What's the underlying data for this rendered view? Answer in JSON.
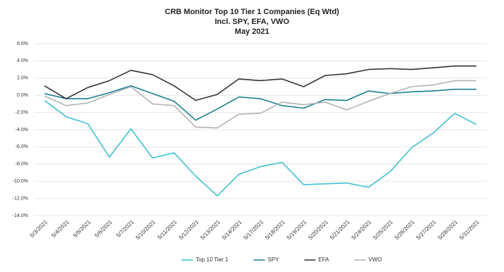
{
  "chart_data": {
    "type": "line",
    "title": "CRB Monitor Top 10 Tier 1 Companies (Eq Wtd)",
    "subtitle": "Incl. SPY, EFA, VWO",
    "period": "May 2021",
    "categories": [
      "5/3/2021",
      "5/4/2021",
      "5/5/2021",
      "5/6/2021",
      "5/7/2021",
      "5/10/2021",
      "5/11/2021",
      "5/12/2021",
      "5/13/2021",
      "5/14/2021",
      "5/17/2021",
      "5/18/2021",
      "5/19/2021",
      "5/20/2021",
      "5/21/2021",
      "5/24/2021",
      "5/25/2021",
      "5/26/2021",
      "5/27/2021",
      "5/28/2021",
      "5/31/2021"
    ],
    "series": [
      {
        "name": "Top 10 Tier 1",
        "color": "#3ec1d3",
        "values": [
          -0.6,
          -2.5,
          -3.3,
          -7.2,
          -3.9,
          -7.3,
          -6.7,
          -9.4,
          -11.7,
          -9.2,
          -8.3,
          -7.8,
          -10.4,
          -10.3,
          -10.2,
          -10.7,
          -8.9,
          -6.1,
          -4.4,
          -2.1,
          -3.4
        ]
      },
      {
        "name": "SPY",
        "color": "#1a7f8e",
        "values": [
          0.2,
          -0.4,
          -0.4,
          0.3,
          1.1,
          0.2,
          -0.7,
          -2.9,
          -1.6,
          -0.2,
          -0.4,
          -1.2,
          -1.5,
          -0.5,
          -0.6,
          0.5,
          0.2,
          0.4,
          0.5,
          0.7,
          0.7
        ]
      },
      {
        "name": "EFA",
        "color": "#333333",
        "values": [
          1.1,
          -0.4,
          0.9,
          1.7,
          2.9,
          2.4,
          1.1,
          -0.6,
          0.1,
          1.9,
          1.7,
          1.9,
          1.0,
          2.3,
          2.5,
          3.0,
          3.1,
          3.0,
          3.2,
          3.4,
          3.4
        ]
      },
      {
        "name": "VWO",
        "color": "#b3b3b3",
        "values": [
          -0.1,
          -1.2,
          -0.9,
          0.1,
          1.0,
          -1.0,
          -1.2,
          -3.7,
          -3.8,
          -2.2,
          -2.1,
          -0.8,
          -1.1,
          -0.8,
          -1.7,
          -0.7,
          0.2,
          1.0,
          1.2,
          1.7,
          1.7
        ]
      }
    ],
    "ylim": [
      -14,
      6
    ],
    "yticks": [
      {
        "value": 6,
        "label": "6.0%"
      },
      {
        "value": 4,
        "label": "4.0%"
      },
      {
        "value": 2,
        "label": "2.0%"
      },
      {
        "value": 0,
        "label": "0.0%"
      },
      {
        "value": -2,
        "label": "-2.0%"
      },
      {
        "value": -4,
        "label": "-4.0%"
      },
      {
        "value": -6,
        "label": "-6.0%"
      },
      {
        "value": -8,
        "label": "-8.0%"
      },
      {
        "value": -10,
        "label": "-10.0%"
      },
      {
        "value": -12,
        "label": "-12.0%"
      },
      {
        "value": -14,
        "label": "-14.0%"
      }
    ],
    "grid": true,
    "legend": "bottom"
  }
}
